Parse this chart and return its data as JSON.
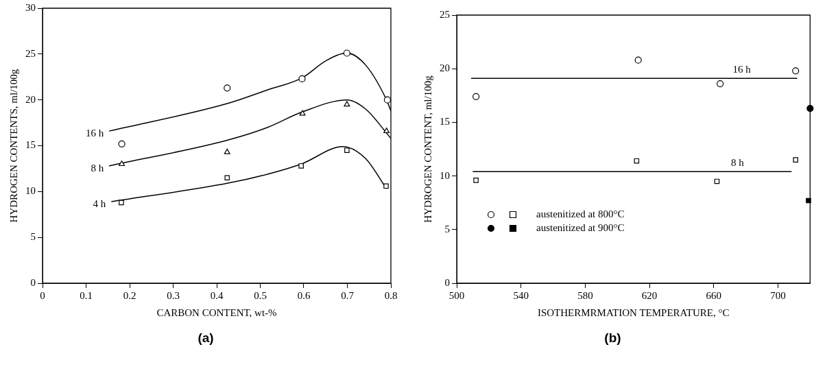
{
  "chart_data": [
    {
      "type": "scatter",
      "xlabel": "CARBON CONTENT, wt-%",
      "ylabel": "HYDROGEN CONTENTS, ml/100g",
      "xlim": [
        0,
        0.8
      ],
      "xticks": [
        0,
        0.1,
        0.2,
        0.3,
        0.4,
        0.5,
        0.6,
        0.7,
        0.8
      ],
      "ylim": [
        0,
        30
      ],
      "yticks": [
        0,
        5,
        10,
        15,
        20,
        25,
        30
      ],
      "grid": false,
      "series": [
        {
          "marker": "circle",
          "color": "#ffffff",
          "x": [
            0.182,
            0.424,
            0.596,
            0.699,
            0.792
          ],
          "values": [
            15.2,
            21.3,
            22.3,
            25.1,
            20.0
          ]
        },
        {
          "marker": "triangle",
          "color": "#ffffff",
          "x": [
            0.182,
            0.424,
            0.597,
            0.699,
            0.79
          ],
          "values": [
            13.0,
            14.3,
            18.5,
            19.5,
            16.6
          ]
        },
        {
          "marker": "square",
          "color": "#ffffff",
          "x": [
            0.181,
            0.424,
            0.594,
            0.699,
            0.789
          ],
          "values": [
            8.8,
            11.5,
            12.8,
            14.5,
            10.6
          ]
        },
        {
          "type": "line",
          "name": "16 h",
          "color": "#000000",
          "x": [
            0.153,
            0.424,
            0.517,
            0.596,
            0.652,
            0.699,
            0.742,
            0.79,
            0.8
          ],
          "values": [
            16.6,
            19.6,
            21.1,
            22.4,
            24.3,
            25.1,
            23.8,
            20.0,
            18.8
          ]
        },
        {
          "type": "line",
          "name": "8 h",
          "color": "#000000",
          "x": [
            0.153,
            0.424,
            0.517,
            0.597,
            0.7,
            0.742,
            0.8
          ],
          "values": [
            12.8,
            15.6,
            17.0,
            18.7,
            20.0,
            19.0,
            15.8
          ]
        },
        {
          "type": "line",
          "name": "4 h",
          "color": "#000000",
          "x": [
            0.158,
            0.424,
            0.517,
            0.594,
            0.69,
            0.742,
            0.79
          ],
          "values": [
            8.9,
            10.9,
            11.9,
            13.0,
            14.9,
            13.6,
            10.3
          ]
        }
      ],
      "annotations": [
        "(a)"
      ]
    },
    {
      "type": "scatter",
      "xlabel": "ISOTHERMRMATION TEMPERATURE, °C",
      "ylabel": "HYDROGEN CONTENT, ml/100g",
      "xlim": [
        500,
        720
      ],
      "xticks": [
        500,
        540,
        580,
        620,
        660,
        700
      ],
      "ylim": [
        0,
        25
      ],
      "yticks": [
        0,
        5,
        10,
        15,
        20,
        25
      ],
      "grid": false,
      "legend": "bottom left",
      "series": [
        {
          "marker": "circle",
          "color": "#ffffff",
          "x": [
            512,
            613,
            664,
            711
          ],
          "values": [
            17.4,
            20.8,
            18.6,
            19.8
          ]
        },
        {
          "name": "austenitized at 800°C",
          "marker": "square",
          "color": "#ffffff",
          "x": [
            512,
            612,
            662,
            711
          ],
          "values": [
            9.6,
            11.4,
            9.5,
            11.5
          ]
        },
        {
          "marker": "circle",
          "color": "#000000",
          "x": [
            720
          ],
          "values": [
            16.3
          ]
        },
        {
          "name": "austenitized at 900°C",
          "marker": "square",
          "color": "#000000",
          "x": [
            719
          ],
          "values": [
            7.7
          ]
        },
        {
          "type": "line",
          "name": "16 h",
          "color": "#000000",
          "x": [
            509,
            712
          ],
          "values": [
            19.1,
            19.1
          ]
        },
        {
          "type": "line",
          "name": "8 h",
          "color": "#000000",
          "x": [
            510,
            708.5
          ],
          "values": [
            10.4,
            10.4
          ]
        }
      ],
      "annotations": [
        "(b)"
      ]
    }
  ]
}
